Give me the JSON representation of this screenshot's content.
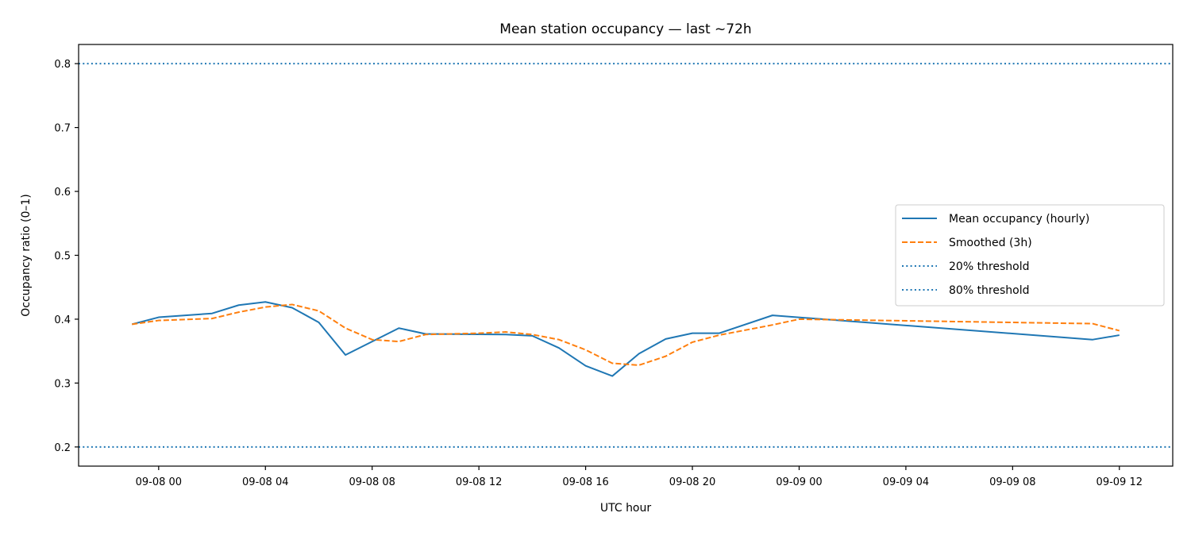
{
  "chart_data": {
    "type": "line",
    "title": "Mean station occupancy — last ~72h",
    "xlabel": "UTC hour",
    "ylabel": "Occupancy ratio (0–1)",
    "xlim": [
      "2023-09-07 21:00",
      "2023-09-09 14:00"
    ],
    "ylim": [
      0.17,
      0.83
    ],
    "x_ticks": [
      {
        "t": "2023-09-08 00:00",
        "label": "09-08 00"
      },
      {
        "t": "2023-09-08 04:00",
        "label": "09-08 04"
      },
      {
        "t": "2023-09-08 08:00",
        "label": "09-08 08"
      },
      {
        "t": "2023-09-08 12:00",
        "label": "09-08 12"
      },
      {
        "t": "2023-09-08 16:00",
        "label": "09-08 16"
      },
      {
        "t": "2023-09-08 20:00",
        "label": "09-08 20"
      },
      {
        "t": "2023-09-09 00:00",
        "label": "09-09 00"
      },
      {
        "t": "2023-09-09 04:00",
        "label": "09-09 04"
      },
      {
        "t": "2023-09-09 08:00",
        "label": "09-09 08"
      },
      {
        "t": "2023-09-09 12:00",
        "label": "09-09 12"
      }
    ],
    "y_ticks": [
      0.2,
      0.3,
      0.4,
      0.5,
      0.6,
      0.7,
      0.8
    ],
    "y_tick_labels": [
      "0.2",
      "0.3",
      "0.4",
      "0.5",
      "0.6",
      "0.7",
      "0.8"
    ],
    "grid": false,
    "legend_position": "center-right",
    "series": [
      {
        "name": "Mean occupancy (hourly)",
        "style": "solid",
        "color": "#1f77b4",
        "points": [
          {
            "t": "2023-09-07 23:00",
            "y": 0.392
          },
          {
            "t": "2023-09-08 00:00",
            "y": 0.403
          },
          {
            "t": "2023-09-08 02:00",
            "y": 0.409
          },
          {
            "t": "2023-09-08 03:00",
            "y": 0.422
          },
          {
            "t": "2023-09-08 04:00",
            "y": 0.427
          },
          {
            "t": "2023-09-08 05:00",
            "y": 0.418
          },
          {
            "t": "2023-09-08 06:00",
            "y": 0.395
          },
          {
            "t": "2023-09-08 07:00",
            "y": 0.344
          },
          {
            "t": "2023-09-08 08:00",
            "y": 0.365
          },
          {
            "t": "2023-09-08 09:00",
            "y": 0.386
          },
          {
            "t": "2023-09-08 10:00",
            "y": 0.377
          },
          {
            "t": "2023-09-08 13:00",
            "y": 0.376
          },
          {
            "t": "2023-09-08 14:00",
            "y": 0.374
          },
          {
            "t": "2023-09-08 15:00",
            "y": 0.355
          },
          {
            "t": "2023-09-08 16:00",
            "y": 0.327
          },
          {
            "t": "2023-09-08 17:00",
            "y": 0.311
          },
          {
            "t": "2023-09-08 18:00",
            "y": 0.346
          },
          {
            "t": "2023-09-08 19:00",
            "y": 0.369
          },
          {
            "t": "2023-09-08 20:00",
            "y": 0.378
          },
          {
            "t": "2023-09-08 21:00",
            "y": 0.378
          },
          {
            "t": "2023-09-08 23:00",
            "y": 0.406
          },
          {
            "t": "2023-09-09 11:00",
            "y": 0.368
          },
          {
            "t": "2023-09-09 12:00",
            "y": 0.375
          }
        ]
      },
      {
        "name": "Smoothed (3h)",
        "style": "dashed",
        "color": "#ff7f0e",
        "points": [
          {
            "t": "2023-09-07 23:00",
            "y": 0.392
          },
          {
            "t": "2023-09-08 00:00",
            "y": 0.398
          },
          {
            "t": "2023-09-08 02:00",
            "y": 0.401
          },
          {
            "t": "2023-09-08 03:00",
            "y": 0.411
          },
          {
            "t": "2023-09-08 04:00",
            "y": 0.419
          },
          {
            "t": "2023-09-08 05:00",
            "y": 0.423
          },
          {
            "t": "2023-09-08 06:00",
            "y": 0.413
          },
          {
            "t": "2023-09-08 07:00",
            "y": 0.386
          },
          {
            "t": "2023-09-08 08:00",
            "y": 0.368
          },
          {
            "t": "2023-09-08 09:00",
            "y": 0.365
          },
          {
            "t": "2023-09-08 10:00",
            "y": 0.376
          },
          {
            "t": "2023-09-08 12:00",
            "y": 0.378
          },
          {
            "t": "2023-09-08 13:00",
            "y": 0.38
          },
          {
            "t": "2023-09-08 14:00",
            "y": 0.376
          },
          {
            "t": "2023-09-08 15:00",
            "y": 0.368
          },
          {
            "t": "2023-09-08 16:00",
            "y": 0.352
          },
          {
            "t": "2023-09-08 17:00",
            "y": 0.331
          },
          {
            "t": "2023-09-08 18:00",
            "y": 0.328
          },
          {
            "t": "2023-09-08 19:00",
            "y": 0.342
          },
          {
            "t": "2023-09-08 20:00",
            "y": 0.364
          },
          {
            "t": "2023-09-08 21:00",
            "y": 0.375
          },
          {
            "t": "2023-09-08 23:00",
            "y": 0.391
          },
          {
            "t": "2023-09-09 00:00",
            "y": 0.4
          },
          {
            "t": "2023-09-09 11:00",
            "y": 0.393
          },
          {
            "t": "2023-09-09 12:00",
            "y": 0.382
          }
        ]
      }
    ],
    "thresholds": [
      {
        "name": "20% threshold",
        "y": 0.2,
        "style": "dotted",
        "color": "#1f77b4"
      },
      {
        "name": "80% threshold",
        "y": 0.8,
        "style": "dotted",
        "color": "#1f77b4"
      }
    ]
  }
}
